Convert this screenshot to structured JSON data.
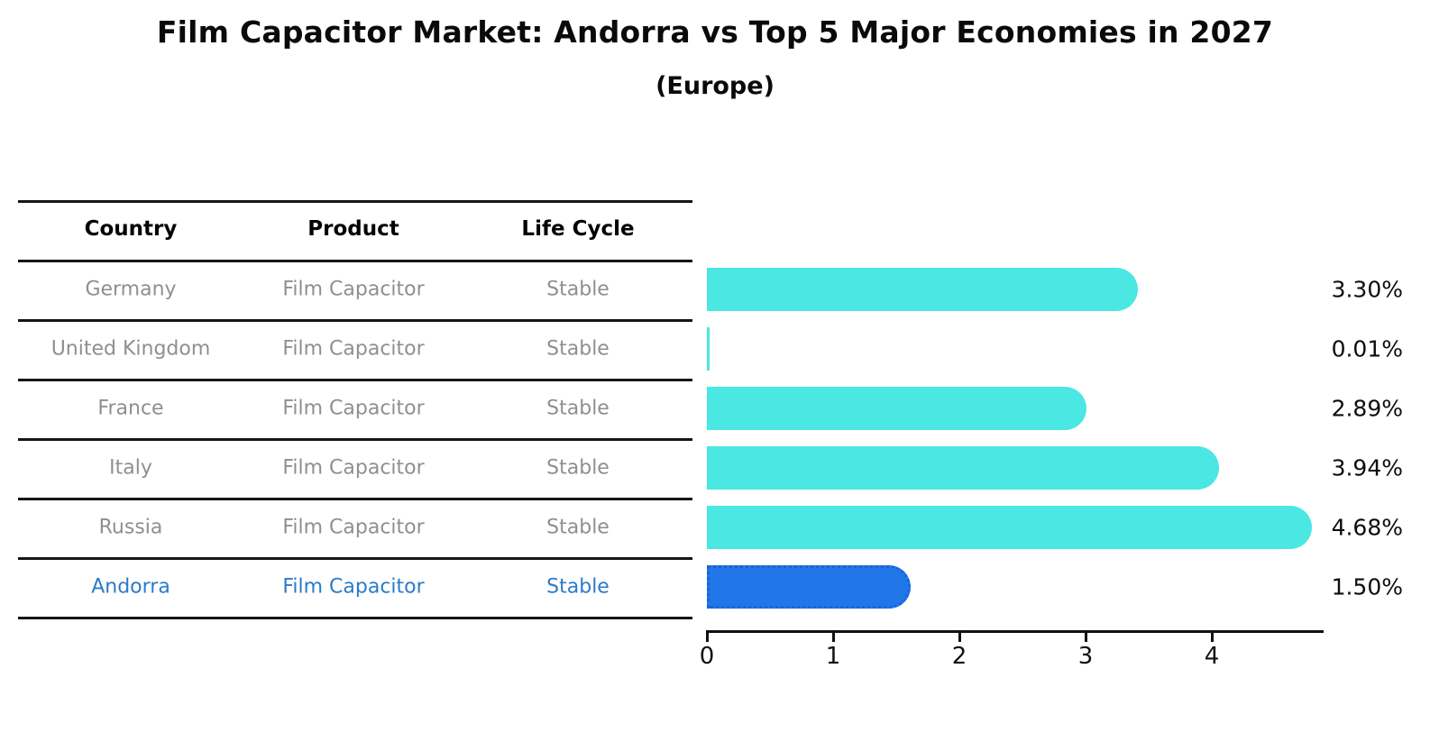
{
  "title": "Film Capacitor Market: Andorra vs Top 5 Major Economies in 2027",
  "subtitle": "(Europe)",
  "table": {
    "headers": [
      "Country",
      "Product",
      "Life Cycle"
    ],
    "rows": [
      {
        "country": "Germany",
        "product": "Film Capacitor",
        "life_cycle": "Stable",
        "highlight": false
      },
      {
        "country": "United Kingdom",
        "product": "Film Capacitor",
        "life_cycle": "Stable",
        "highlight": false
      },
      {
        "country": "France",
        "product": "Film Capacitor",
        "life_cycle": "Stable",
        "highlight": false
      },
      {
        "country": "Italy",
        "product": "Film Capacitor",
        "life_cycle": "Stable",
        "highlight": false
      },
      {
        "country": "Russia",
        "product": "Film Capacitor",
        "life_cycle": "Stable",
        "highlight": false
      },
      {
        "country": "Andorra",
        "product": "Film Capacitor",
        "life_cycle": "Stable",
        "highlight": true
      }
    ]
  },
  "chart_data": {
    "type": "bar",
    "orientation": "horizontal",
    "title": "Film Capacitor Market: Andorra vs Top 5 Major Economies in 2027 (Europe)",
    "categories": [
      "Germany",
      "United Kingdom",
      "France",
      "Italy",
      "Russia",
      "Andorra"
    ],
    "values": [
      3.3,
      0.01,
      2.89,
      3.94,
      4.68,
      1.5
    ],
    "value_labels": [
      "3.30%",
      "0.01%",
      "2.89%",
      "3.94%",
      "4.68%",
      "1.50%"
    ],
    "xlabel": "",
    "ylabel": "",
    "xticks": [
      0,
      1,
      2,
      3,
      4
    ],
    "xtick_labels": [
      "0",
      "1",
      "2",
      "3",
      "4"
    ],
    "xlim": [
      0,
      4.89
    ],
    "grid": false,
    "legend": false,
    "colors": {
      "bar_default": "#4AE7E3",
      "bar_highlight": "#2277E8",
      "bar_highlight_border": "#1a64d4",
      "highlight_text": "#2B7BC9",
      "table_text": "#8f8f8f",
      "header_text": "#030303",
      "label_text": "#0d0d0d"
    }
  }
}
